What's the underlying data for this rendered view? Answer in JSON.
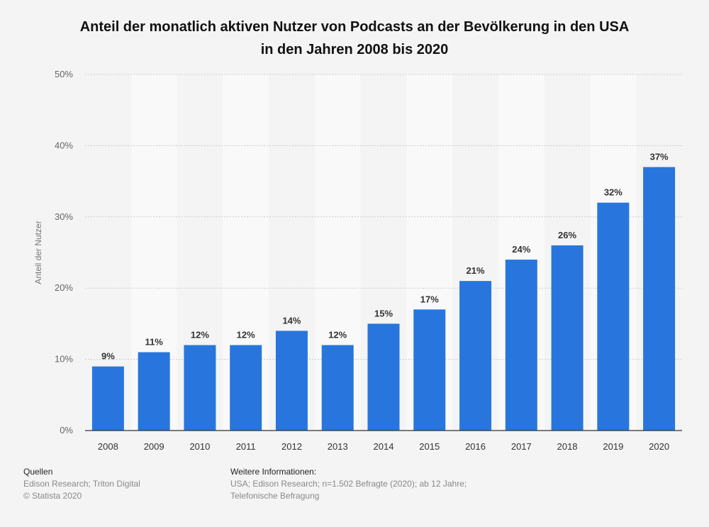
{
  "title_line1": "Anteil der monatlich aktiven Nutzer von Podcasts an der Bevölkerung in den USA",
  "title_line2": "in den Jahren 2008 bis 2020",
  "colors": {
    "bar": "#2876dd",
    "band": "#f9f9f9",
    "grid": "#cccccc",
    "axis": "#333333",
    "label": "#333333"
  },
  "footer": {
    "sources_heading": "Quellen",
    "sources_text": "Edison Research; Triton Digital",
    "copyright": "© Statista 2020",
    "info_heading": "Weitere Informationen:",
    "info_line1": "USA; Edison Research; n=1.502 Befragte (2020); ab 12 Jahre;",
    "info_line2": "Telefonische Befragung"
  },
  "chart_data": {
    "type": "bar",
    "categories": [
      "2008",
      "2009",
      "2010",
      "2011",
      "2012",
      "2013",
      "2014",
      "2015",
      "2016",
      "2017",
      "2018",
      "2019",
      "2020"
    ],
    "values": [
      9,
      11,
      12,
      12,
      14,
      12,
      15,
      17,
      21,
      24,
      26,
      32,
      37
    ],
    "value_labels": [
      "9%",
      "11%",
      "12%",
      "12%",
      "14%",
      "12%",
      "15%",
      "17%",
      "21%",
      "24%",
      "26%",
      "32%",
      "37%"
    ],
    "title": "Anteil der monatlich aktiven Nutzer von Podcasts an der Bevölkerung in den USA in den Jahren 2008 bis 2020",
    "xlabel": "",
    "ylabel": "Anteil der Nutzer",
    "ylim": [
      0,
      50
    ],
    "yticks": [
      0,
      10,
      20,
      30,
      40,
      50
    ],
    "ytick_labels": [
      "0%",
      "10%",
      "20%",
      "30%",
      "40%",
      "50%"
    ],
    "grid": true,
    "legend": "none"
  }
}
